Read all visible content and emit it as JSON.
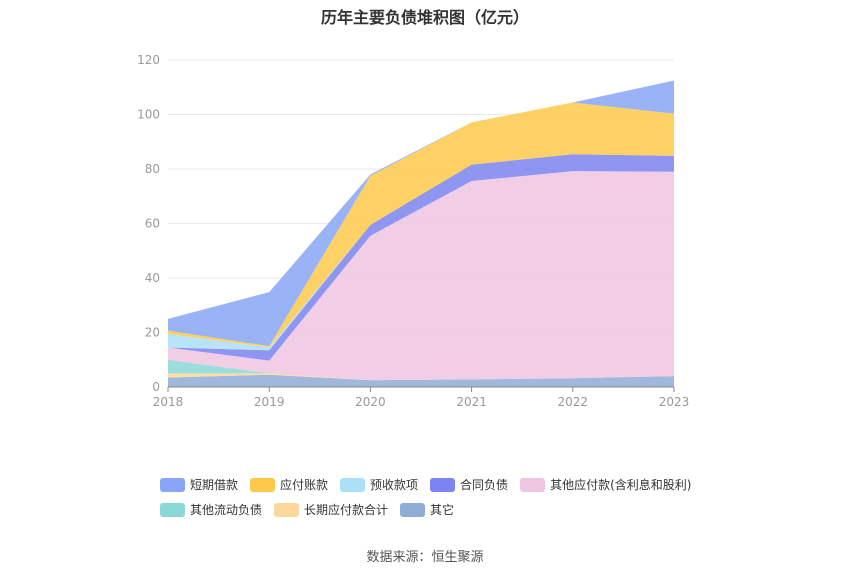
{
  "chart_data": {
    "type": "area",
    "stacked": true,
    "title": "历年主要负债堆积图（亿元）",
    "categories": [
      "2018",
      "2019",
      "2020",
      "2021",
      "2022",
      "2023"
    ],
    "ylim": [
      0,
      120
    ],
    "yticks": [
      0,
      20,
      40,
      60,
      80,
      100,
      120
    ],
    "grid": true,
    "legend_position": "bottom",
    "series": [
      {
        "name": "其它",
        "color": "#8eacd6",
        "values": [
          3.5,
          4.5,
          2.5,
          2.8,
          3.2,
          4.0
        ]
      },
      {
        "name": "长期应付款合计",
        "color": "#fdd89a",
        "values": [
          1.5,
          0.5,
          0,
          0,
          0,
          0
        ]
      },
      {
        "name": "其他流动负债",
        "color": "#8ad8d6",
        "values": [
          5.0,
          0,
          0,
          0,
          0,
          0
        ]
      },
      {
        "name": "其他应付款(含利息和股利)",
        "color": "#eec6e2",
        "values": [
          4.5,
          4.7,
          53.0,
          72.8,
          76.0,
          75.0
        ]
      },
      {
        "name": "合同负债",
        "color": "#7b84f0",
        "values": [
          0,
          3.8,
          4.0,
          6.0,
          6.2,
          5.8
        ]
      },
      {
        "name": "预收款项",
        "color": "#acdff8",
        "values": [
          5.0,
          1.0,
          0,
          0,
          0,
          0
        ]
      },
      {
        "name": "应付账款",
        "color": "#fdc94b",
        "values": [
          1.2,
          0.5,
          18.0,
          15.5,
          19.0,
          15.5
        ]
      },
      {
        "name": "短期借款",
        "color": "#87a6f5",
        "values": [
          4.3,
          19.8,
          0.5,
          0,
          0,
          12.2
        ]
      }
    ]
  },
  "legend": {
    "row1": [
      {
        "label": "短期借款",
        "color": "#87a6f5"
      },
      {
        "label": "应付账款",
        "color": "#fdc94b"
      },
      {
        "label": "预收款项",
        "color": "#acdff8"
      },
      {
        "label": "合同负债",
        "color": "#7b84f0"
      },
      {
        "label": "其他应付款(含利息和股利)",
        "color": "#eec6e2"
      }
    ],
    "row2": [
      {
        "label": "其他流动负债",
        "color": "#8ad8d6"
      },
      {
        "label": "长期应付款合计",
        "color": "#fdd89a"
      },
      {
        "label": "其它",
        "color": "#8eacd6"
      }
    ]
  },
  "source": "数据来源：恒生聚源"
}
